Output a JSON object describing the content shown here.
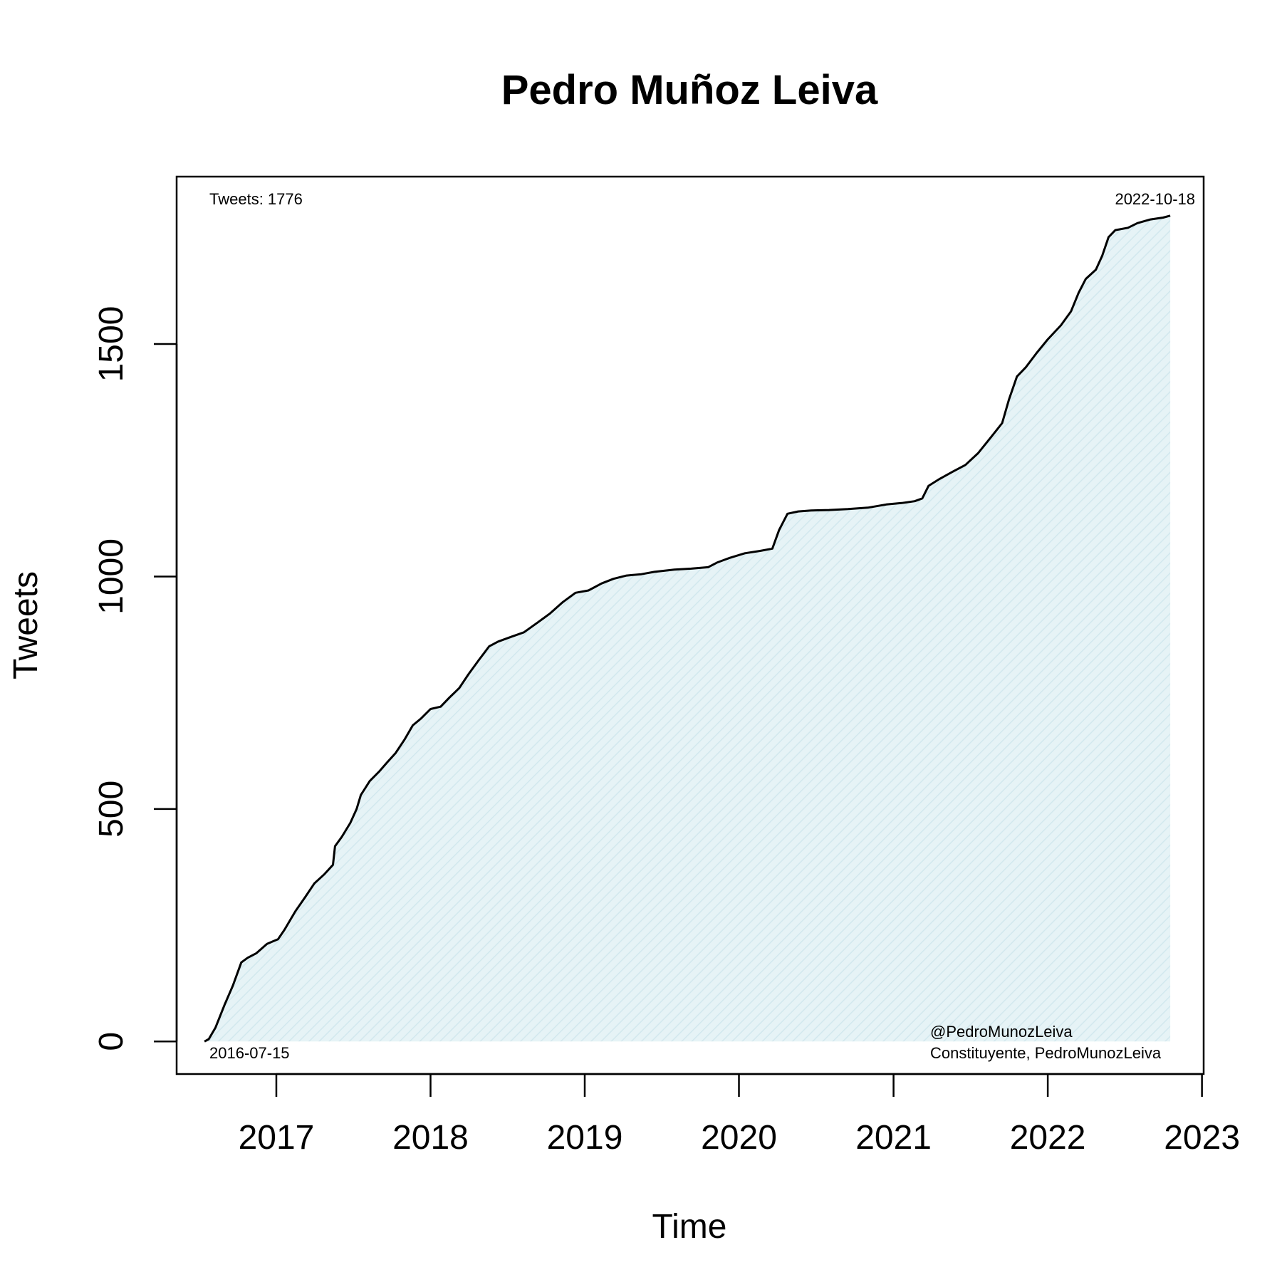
{
  "chart_data": {
    "type": "area",
    "title": "Pedro Muñoz Leiva",
    "xlabel": "Time",
    "ylabel": "Tweets",
    "x_ticks": [
      "2017",
      "2018",
      "2019",
      "2020",
      "2021",
      "2022",
      "2023"
    ],
    "y_ticks": [
      "0",
      "500",
      "1000",
      "1500"
    ],
    "xlim": [
      "2016-05-10",
      "2023-01-05"
    ],
    "ylim": [
      -70,
      1860
    ],
    "grid": false,
    "annotations": {
      "count": "Tweets: 1776",
      "start_date": "2016-07-15",
      "end_date": "2022-10-18",
      "handle": "@PedroMunozLeiva",
      "description": "Constituyente, PedroMunozLeiva"
    },
    "colors": {
      "line": "#000000",
      "fill": "#e6f3f6",
      "hatch": "#d2e8ee"
    },
    "series": [
      {
        "points": [
          [
            "2016-07-15",
            0
          ],
          [
            "2016-07-25",
            5
          ],
          [
            "2016-08-10",
            30
          ],
          [
            "2016-09-01",
            80
          ],
          [
            "2016-09-20",
            120
          ],
          [
            "2016-10-10",
            170
          ],
          [
            "2016-10-25",
            180
          ],
          [
            "2016-11-15",
            190
          ],
          [
            "2016-12-10",
            210
          ],
          [
            "2017-01-05",
            220
          ],
          [
            "2017-01-20",
            240
          ],
          [
            "2017-02-15",
            280
          ],
          [
            "2017-03-10",
            310
          ],
          [
            "2017-04-01",
            340
          ],
          [
            "2017-04-25",
            360
          ],
          [
            "2017-05-15",
            380
          ],
          [
            "2017-05-20",
            420
          ],
          [
            "2017-06-05",
            440
          ],
          [
            "2017-06-25",
            470
          ],
          [
            "2017-07-10",
            500
          ],
          [
            "2017-07-20",
            530
          ],
          [
            "2017-08-10",
            560
          ],
          [
            "2017-09-01",
            580
          ],
          [
            "2017-09-20",
            600
          ],
          [
            "2017-10-10",
            620
          ],
          [
            "2017-11-01",
            650
          ],
          [
            "2017-11-20",
            680
          ],
          [
            "2017-12-10",
            695
          ],
          [
            "2018-01-01",
            715
          ],
          [
            "2018-01-25",
            720
          ],
          [
            "2018-02-15",
            740
          ],
          [
            "2018-03-10",
            760
          ],
          [
            "2018-04-01",
            790
          ],
          [
            "2018-04-25",
            820
          ],
          [
            "2018-05-20",
            850
          ],
          [
            "2018-06-10",
            860
          ],
          [
            "2018-07-10",
            870
          ],
          [
            "2018-08-10",
            880
          ],
          [
            "2018-09-10",
            900
          ],
          [
            "2018-10-10",
            920
          ],
          [
            "2018-11-10",
            945
          ],
          [
            "2018-12-10",
            965
          ],
          [
            "2019-01-10",
            970
          ],
          [
            "2019-02-10",
            985
          ],
          [
            "2019-03-10",
            995
          ],
          [
            "2019-04-10",
            1002
          ],
          [
            "2019-05-15",
            1005
          ],
          [
            "2019-06-15",
            1010
          ],
          [
            "2019-08-01",
            1015
          ],
          [
            "2019-09-10",
            1017
          ],
          [
            "2019-10-20",
            1020
          ],
          [
            "2019-11-10",
            1030
          ],
          [
            "2019-12-10",
            1040
          ],
          [
            "2020-01-15",
            1050
          ],
          [
            "2020-02-20",
            1055
          ],
          [
            "2020-03-20",
            1060
          ],
          [
            "2020-04-05",
            1100
          ],
          [
            "2020-04-25",
            1135
          ],
          [
            "2020-05-20",
            1140
          ],
          [
            "2020-06-20",
            1142
          ],
          [
            "2020-08-01",
            1143
          ],
          [
            "2020-09-15",
            1145
          ],
          [
            "2020-11-01",
            1148
          ],
          [
            "2020-12-15",
            1155
          ],
          [
            "2021-01-20",
            1158
          ],
          [
            "2021-02-20",
            1162
          ],
          [
            "2021-03-10",
            1168
          ],
          [
            "2021-03-25",
            1195
          ],
          [
            "2021-04-20",
            1210
          ],
          [
            "2021-05-20",
            1225
          ],
          [
            "2021-06-20",
            1240
          ],
          [
            "2021-07-20",
            1265
          ],
          [
            "2021-08-20",
            1300
          ],
          [
            "2021-09-15",
            1330
          ],
          [
            "2021-10-01",
            1380
          ],
          [
            "2021-10-20",
            1430
          ],
          [
            "2021-11-10",
            1450
          ],
          [
            "2021-12-05",
            1480
          ],
          [
            "2022-01-01",
            1510
          ],
          [
            "2022-02-01",
            1540
          ],
          [
            "2022-02-25",
            1570
          ],
          [
            "2022-03-15",
            1610
          ],
          [
            "2022-04-01",
            1640
          ],
          [
            "2022-04-25",
            1660
          ],
          [
            "2022-05-10",
            1690
          ],
          [
            "2022-05-25",
            1730
          ],
          [
            "2022-06-10",
            1745
          ],
          [
            "2022-07-10",
            1750
          ],
          [
            "2022-08-01",
            1760
          ],
          [
            "2022-09-01",
            1768
          ],
          [
            "2022-10-01",
            1772
          ],
          [
            "2022-10-18",
            1776
          ]
        ]
      }
    ]
  }
}
